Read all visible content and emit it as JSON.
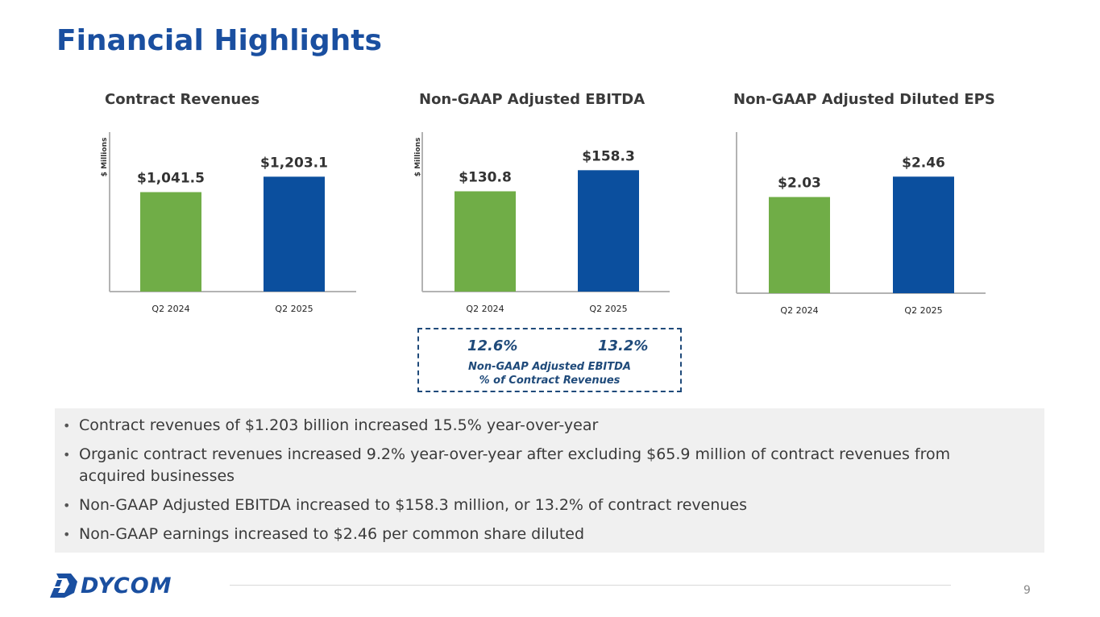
{
  "page": {
    "title": "Financial Highlights",
    "page_number": "9"
  },
  "chart_data": [
    {
      "type": "bar",
      "title": "Contract Revenues",
      "categories": [
        "Q2 2024",
        "Q2 2025"
      ],
      "values": [
        1041.5,
        1203.1
      ],
      "value_labels": [
        "$1,041.5",
        "$1,203.1"
      ],
      "colors": [
        "#70ad47",
        "#0b4f9e"
      ],
      "xlabel": "",
      "ylabel": "$ Millions",
      "ylim": [
        0,
        1670
      ]
    },
    {
      "type": "bar",
      "title": "Non-GAAP Adjusted EBITDA",
      "categories": [
        "Q2 2024",
        "Q2 2025"
      ],
      "values": [
        130.8,
        158.3
      ],
      "value_labels": [
        "$130.8",
        "$158.3"
      ],
      "colors": [
        "#70ad47",
        "#0b4f9e"
      ],
      "xlabel": "",
      "ylabel": "$ Millions",
      "ylim": [
        0,
        208
      ]
    },
    {
      "type": "bar",
      "title": "Non-GAAP Adjusted Diluted EPS",
      "categories": [
        "Q2 2024",
        "Q2 2025"
      ],
      "values": [
        2.03,
        2.46
      ],
      "value_labels": [
        "$2.03",
        "$2.46"
      ],
      "colors": [
        "#70ad47",
        "#0b4f9e"
      ],
      "xlabel": "",
      "ylabel": "",
      "ylim": [
        0,
        3.4
      ]
    }
  ],
  "ebitda_margin": {
    "values": [
      "12.6%",
      "13.2%"
    ],
    "caption_line1": "Non-GAAP Adjusted EBITDA",
    "caption_line2": "% of Contract Revenues"
  },
  "bullets": [
    "Contract revenues of $1.203 billion increased 15.5% year-over-year",
    "Organic contract revenues increased 9.2% year-over-year after excluding $65.9 million of contract revenues from acquired businesses",
    "Non-GAAP Adjusted EBITDA increased to $158.3 million, or 13.2% of contract revenues",
    "Non-GAAP earnings increased to $2.46 per common share diluted"
  ],
  "logo": {
    "text": "DYCOM",
    "icon": "dycom-d-icon"
  },
  "colors": {
    "title_blue": "#1a4fa0",
    "green_bar": "#70ad47",
    "blue_bar": "#0b4f9e"
  }
}
